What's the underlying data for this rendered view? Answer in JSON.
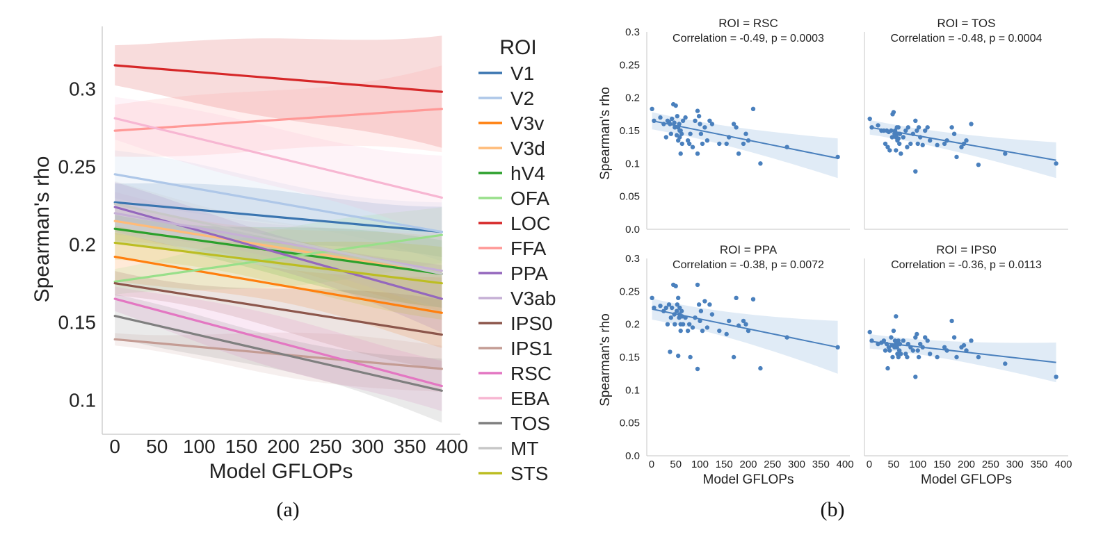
{
  "captions": {
    "a": "(a)",
    "b": "(b)"
  },
  "chart_data": [
    {
      "id": "a",
      "type": "line",
      "xlabel": "Model GFLOPs",
      "ylabel": "Spearman's rho",
      "xlim": [
        -15,
        410
      ],
      "ylim": [
        0.078,
        0.34
      ],
      "xticks": [
        0,
        50,
        100,
        150,
        200,
        250,
        300,
        350,
        400
      ],
      "xtick_labels": [
        "0",
        "50",
        "100",
        "150",
        "200",
        "250",
        "300",
        "350",
        "400"
      ],
      "yticks": [
        0.1,
        0.15,
        0.2,
        0.25,
        0.3
      ],
      "ytick_labels": [
        "0.1",
        "0.15",
        "0.2",
        "0.25",
        "0.3"
      ],
      "x_range": [
        0,
        388
      ],
      "legend": {
        "title": "ROI",
        "placement": "right"
      },
      "series": [
        {
          "name": "V1",
          "color": "#3a75b0",
          "start": 0.227,
          "end": 0.208,
          "ci_start": 0.012,
          "ci_end": 0.02
        },
        {
          "name": "V2",
          "color": "#aec7e8",
          "start": 0.245,
          "end": 0.208,
          "ci_start": 0.012,
          "ci_end": 0.02
        },
        {
          "name": "V3v",
          "color": "#ff7f0e",
          "start": 0.192,
          "end": 0.156,
          "ci_start": 0.012,
          "ci_end": 0.02
        },
        {
          "name": "V3d",
          "color": "#ffbb78",
          "start": 0.215,
          "end": 0.181,
          "ci_start": 0.012,
          "ci_end": 0.02
        },
        {
          "name": "hV4",
          "color": "#2ca02c",
          "start": 0.21,
          "end": 0.181,
          "ci_start": 0.012,
          "ci_end": 0.02
        },
        {
          "name": "OFA",
          "color": "#98df8a",
          "start": 0.176,
          "end": 0.206,
          "ci_start": 0.012,
          "ci_end": 0.02
        },
        {
          "name": "LOC",
          "color": "#d62728",
          "start": 0.315,
          "end": 0.298,
          "ci_start": 0.014,
          "ci_end": 0.04
        },
        {
          "name": "FFA",
          "color": "#ff9896",
          "start": 0.273,
          "end": 0.287,
          "ci_start": 0.014,
          "ci_end": 0.03
        },
        {
          "name": "PPA",
          "color": "#9467bd",
          "start": 0.224,
          "end": 0.165,
          "ci_start": 0.012,
          "ci_end": 0.02
        },
        {
          "name": "V3ab",
          "color": "#c5b0d5",
          "start": 0.22,
          "end": 0.183,
          "ci_start": 0.012,
          "ci_end": 0.02
        },
        {
          "name": "IPS0",
          "color": "#8c564b",
          "start": 0.175,
          "end": 0.142,
          "ci_start": 0.01,
          "ci_end": 0.02
        },
        {
          "name": "IPS1",
          "color": "#c49c94",
          "start": 0.139,
          "end": 0.12,
          "ci_start": 0.008,
          "ci_end": 0.016
        },
        {
          "name": "RSC",
          "color": "#e377c2",
          "start": 0.165,
          "end": 0.109,
          "ci_start": 0.01,
          "ci_end": 0.02
        },
        {
          "name": "EBA",
          "color": "#f7b6d2",
          "start": 0.281,
          "end": 0.23,
          "ci_start": 0.012,
          "ci_end": 0.03
        },
        {
          "name": "TOS",
          "color": "#7f7f7f",
          "start": 0.154,
          "end": 0.106,
          "ci_start": 0.01,
          "ci_end": 0.02
        },
        {
          "name": "MT",
          "color": "#c7c7c7",
          "start": 0.226,
          "end": 0.181,
          "ci_start": 0.012,
          "ci_end": 0.02
        },
        {
          "name": "STS",
          "color": "#bcbd22",
          "start": 0.201,
          "end": 0.175,
          "ci_start": 0.012,
          "ci_end": 0.02
        }
      ]
    },
    {
      "id": "b",
      "type": "scatter",
      "facets": true,
      "color": "#4a80bd",
      "band_color": "#c6dbef",
      "xlim": [
        -10,
        410
      ],
      "ylim": [
        0,
        0.3
      ],
      "xticks": [
        0,
        50,
        100,
        150,
        200,
        250,
        300,
        350,
        400
      ],
      "xtick_labels": [
        "0",
        "50",
        "100",
        "150",
        "200",
        "250",
        "300",
        "350",
        "400"
      ],
      "yticks": [
        0.0,
        0.05,
        0.1,
        0.15,
        0.2,
        0.25,
        0.3
      ],
      "ytick_labels": [
        "0.0",
        "0.05",
        "0.1",
        "0.15",
        "0.2",
        "0.25",
        "0.3"
      ],
      "xlabel": "Model GFLOPs",
      "ylabel": "Spearman's rho",
      "panels": [
        {
          "title": "ROI = RSC",
          "annotation": "Correlation = -0.49, p = 0.0003",
          "fit": [
            0.165,
            0.108
          ],
          "ci": [
            0.012,
            0.025
          ],
          "x": [
            1,
            5,
            18,
            25,
            30,
            33,
            36,
            38,
            40,
            42,
            45,
            47,
            48,
            50,
            52,
            53,
            55,
            55,
            57,
            58,
            58,
            60,
            60,
            62,
            63,
            65,
            70,
            75,
            78,
            80,
            85,
            90,
            95,
            95,
            98,
            100,
            102,
            105,
            110,
            115,
            120,
            125,
            140,
            155,
            160,
            170,
            175,
            180,
            190,
            195,
            200,
            210,
            225,
            280,
            385
          ],
          "y": [
            0.183,
            0.165,
            0.17,
            0.16,
            0.14,
            0.165,
            0.163,
            0.16,
            0.145,
            0.168,
            0.19,
            0.162,
            0.155,
            0.188,
            0.143,
            0.172,
            0.155,
            0.135,
            0.16,
            0.15,
            0.14,
            0.115,
            0.15,
            0.145,
            0.13,
            0.165,
            0.17,
            0.135,
            0.13,
            0.145,
            0.125,
            0.165,
            0.18,
            0.115,
            0.172,
            0.16,
            0.145,
            0.13,
            0.155,
            0.135,
            0.165,
            0.16,
            0.13,
            0.13,
            0.14,
            0.16,
            0.155,
            0.115,
            0.13,
            0.145,
            0.135,
            0.183,
            0.1,
            0.125,
            0.11
          ]
        },
        {
          "title": "ROI = TOS",
          "annotation": "Correlation = -0.48, p = 0.0004",
          "fit": [
            0.155,
            0.105
          ],
          "ci": [
            0.01,
            0.022
          ],
          "x": [
            1,
            5,
            18,
            25,
            30,
            33,
            36,
            38,
            40,
            42,
            45,
            47,
            48,
            50,
            52,
            53,
            55,
            55,
            57,
            58,
            58,
            60,
            60,
            62,
            63,
            65,
            70,
            75,
            78,
            80,
            85,
            90,
            95,
            95,
            98,
            100,
            102,
            105,
            110,
            115,
            120,
            125,
            140,
            155,
            160,
            170,
            175,
            180,
            190,
            195,
            200,
            210,
            225,
            280,
            385
          ],
          "y": [
            0.168,
            0.155,
            0.158,
            0.15,
            0.15,
            0.13,
            0.15,
            0.125,
            0.148,
            0.12,
            0.15,
            0.14,
            0.175,
            0.178,
            0.145,
            0.15,
            0.14,
            0.12,
            0.155,
            0.135,
            0.145,
            0.155,
            0.138,
            0.13,
            0.145,
            0.115,
            0.14,
            0.15,
            0.125,
            0.155,
            0.13,
            0.145,
            0.165,
            0.088,
            0.15,
            0.13,
            0.155,
            0.14,
            0.128,
            0.15,
            0.155,
            0.135,
            0.128,
            0.13,
            0.135,
            0.155,
            0.145,
            0.11,
            0.125,
            0.13,
            0.135,
            0.16,
            0.098,
            0.115,
            0.1
          ]
        },
        {
          "title": "ROI = PPA",
          "annotation": "Correlation = -0.38, p = 0.0072",
          "fit": [
            0.223,
            0.165
          ],
          "ci": [
            0.015,
            0.035
          ],
          "x": [
            1,
            5,
            18,
            25,
            30,
            33,
            36,
            38,
            40,
            42,
            45,
            47,
            48,
            50,
            52,
            53,
            55,
            55,
            57,
            58,
            58,
            60,
            60,
            62,
            63,
            65,
            70,
            75,
            78,
            80,
            85,
            90,
            95,
            95,
            98,
            100,
            102,
            105,
            110,
            115,
            120,
            125,
            140,
            155,
            160,
            170,
            175,
            180,
            190,
            195,
            200,
            210,
            225,
            280,
            385
          ],
          "y": [
            0.24,
            0.225,
            0.228,
            0.22,
            0.225,
            0.2,
            0.23,
            0.158,
            0.21,
            0.225,
            0.26,
            0.215,
            0.2,
            0.258,
            0.22,
            0.23,
            0.24,
            0.152,
            0.21,
            0.215,
            0.225,
            0.2,
            0.19,
            0.22,
            0.212,
            0.2,
            0.21,
            0.19,
            0.2,
            0.15,
            0.195,
            0.21,
            0.26,
            0.132,
            0.23,
            0.205,
            0.22,
            0.19,
            0.235,
            0.195,
            0.23,
            0.215,
            0.19,
            0.185,
            0.205,
            0.15,
            0.24,
            0.198,
            0.205,
            0.2,
            0.19,
            0.238,
            0.133,
            0.18,
            0.165
          ]
        },
        {
          "title": "ROI = IPS0",
          "annotation": "Correlation = -0.36, p = 0.0113",
          "fit": [
            0.174,
            0.142
          ],
          "ci": [
            0.01,
            0.025
          ],
          "x": [
            1,
            5,
            18,
            25,
            30,
            33,
            36,
            38,
            40,
            42,
            45,
            47,
            48,
            50,
            52,
            53,
            55,
            55,
            57,
            58,
            58,
            60,
            60,
            62,
            63,
            65,
            70,
            75,
            78,
            80,
            85,
            90,
            95,
            95,
            98,
            100,
            102,
            105,
            110,
            115,
            120,
            125,
            140,
            155,
            160,
            170,
            175,
            180,
            190,
            195,
            200,
            210,
            225,
            280,
            385
          ],
          "y": [
            0.188,
            0.175,
            0.17,
            0.172,
            0.175,
            0.16,
            0.17,
            0.133,
            0.165,
            0.16,
            0.18,
            0.168,
            0.15,
            0.19,
            0.165,
            0.175,
            0.17,
            0.212,
            0.165,
            0.17,
            0.155,
            0.15,
            0.175,
            0.16,
            0.17,
            0.155,
            0.175,
            0.155,
            0.15,
            0.17,
            0.165,
            0.16,
            0.18,
            0.12,
            0.185,
            0.16,
            0.15,
            0.17,
            0.165,
            0.18,
            0.175,
            0.155,
            0.15,
            0.165,
            0.16,
            0.205,
            0.18,
            0.15,
            0.165,
            0.168,
            0.16,
            0.175,
            0.15,
            0.14,
            0.12
          ]
        }
      ]
    }
  ]
}
